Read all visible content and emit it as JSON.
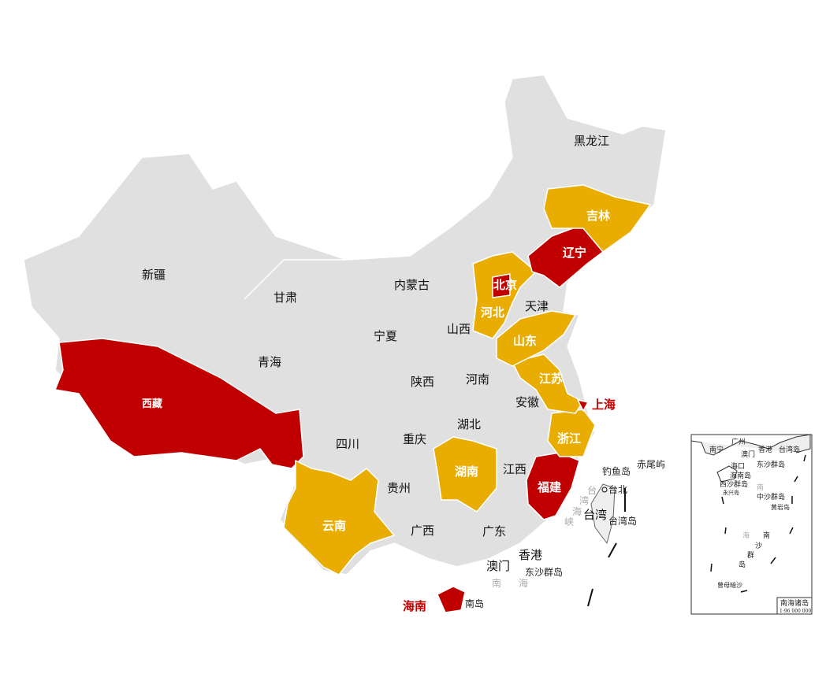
{
  "colors": {
    "base": "#e0e0e0",
    "border": "#ffffff",
    "high": "#c00000",
    "medium": "#e9ac00"
  },
  "provinces": {
    "heilongjiang": {
      "label": "黑龙江",
      "level": "base"
    },
    "jilin": {
      "label": "吉林",
      "level": "medium"
    },
    "liaoning": {
      "label": "辽宁",
      "level": "high"
    },
    "neimenggu": {
      "label": "内蒙古",
      "level": "base"
    },
    "xinjiang": {
      "label": "新疆",
      "level": "base"
    },
    "gansu": {
      "label": "甘肃",
      "level": "base"
    },
    "beijing": {
      "label": "北京",
      "level": "high"
    },
    "tianjin": {
      "label": "天津",
      "level": "base"
    },
    "hebei": {
      "label": "河北",
      "level": "medium"
    },
    "shanxi": {
      "label": "山西",
      "level": "base"
    },
    "ningxia": {
      "label": "宁夏",
      "level": "base"
    },
    "shandong": {
      "label": "山东",
      "level": "medium"
    },
    "qinghai": {
      "label": "青海",
      "level": "base"
    },
    "shaanxi": {
      "label": "陕西",
      "level": "base"
    },
    "henan": {
      "label": "河南",
      "level": "base"
    },
    "jiangsu": {
      "label": "江苏",
      "level": "medium"
    },
    "xizang": {
      "label": "西藏",
      "level": "high"
    },
    "anhui": {
      "label": "安徽",
      "level": "base"
    },
    "shanghai": {
      "label": "上海",
      "level": "high"
    },
    "sichuan": {
      "label": "四川",
      "level": "base"
    },
    "chongqing": {
      "label": "重庆",
      "level": "base"
    },
    "hubei": {
      "label": "湖北",
      "level": "base"
    },
    "zhejiang": {
      "label": "浙江",
      "level": "medium"
    },
    "hunan": {
      "label": "湖南",
      "level": "medium"
    },
    "jiangxi": {
      "label": "江西",
      "level": "base"
    },
    "fujian": {
      "label": "福建",
      "level": "high"
    },
    "guizhou": {
      "label": "贵州",
      "level": "base"
    },
    "yunnan": {
      "label": "云南",
      "level": "medium"
    },
    "guangxi": {
      "label": "广西",
      "level": "base"
    },
    "guangdong": {
      "label": "广东",
      "level": "base"
    },
    "taiwan": {
      "label": "台湾",
      "level": "base"
    },
    "xianggang": {
      "label": "香港",
      "level": "base"
    },
    "aomen": {
      "label": "澳门",
      "level": "base"
    },
    "hainan": {
      "label": "海南",
      "level": "high"
    }
  },
  "annotations": {
    "diaoyudao": "钓鱼岛",
    "chiweiyu": "赤尾屿",
    "taibei": "台北",
    "taiwandao": "台湾岛",
    "dongsha": "东沙群岛",
    "nanhai_1": "南",
    "nanhai_2": "海",
    "hainandao_suffix": "南岛",
    "strait_1": "台",
    "strait_2": "湾",
    "strait_3": "海",
    "strait_4": "峡"
  },
  "inset": {
    "title": "南海诸岛",
    "scale": "1:96 000 000",
    "labels": {
      "nanning": "南宁",
      "guangzhou": "广州",
      "aomen": "澳门",
      "xianggang": "香港",
      "taiwandao": "台湾岛",
      "haikou": "海口",
      "dongsha": "东沙群岛",
      "hainandao": "海南岛",
      "xisha": "西沙群岛",
      "yongxing": "永兴岛",
      "nan": "南",
      "zhongsha": "中沙群岛",
      "huangyan": "黄岩岛",
      "hai": "海",
      "nansha_1": "南",
      "nansha_2": "沙",
      "nansha_3": "群",
      "nansha_4": "岛",
      "zengmu": "曾母暗沙"
    }
  }
}
